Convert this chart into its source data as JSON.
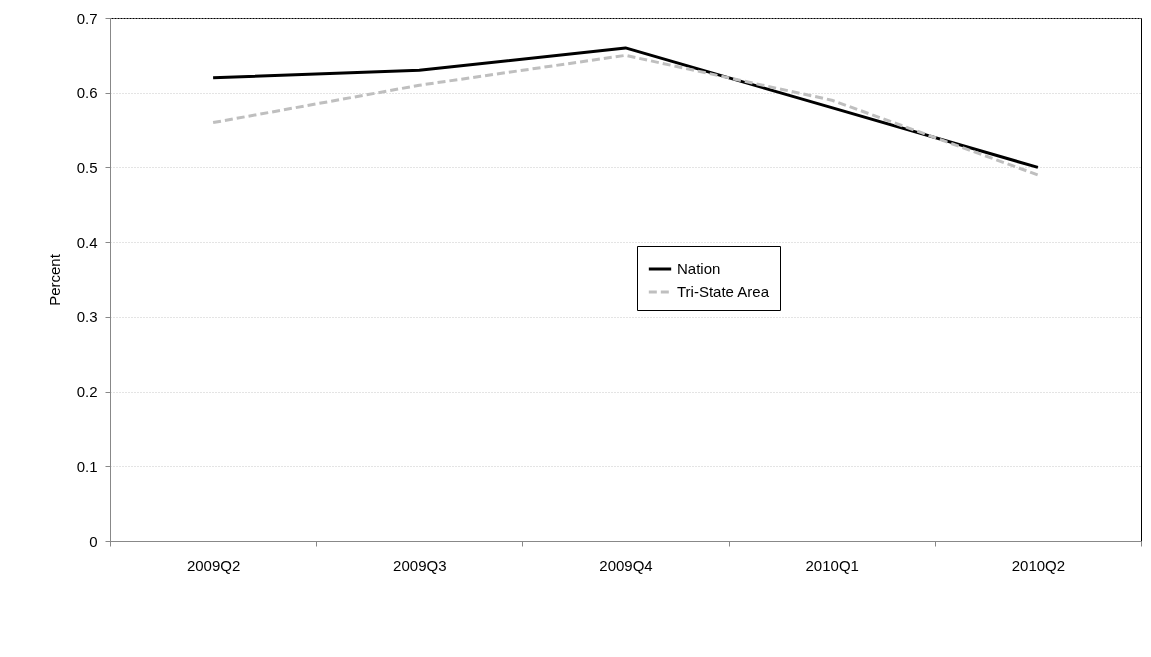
{
  "chart_data": {
    "type": "line",
    "ylabel": "Percent",
    "categories": [
      "2009Q2",
      "2009Q3",
      "2009Q4",
      "2010Q1",
      "2010Q2"
    ],
    "series": [
      {
        "name": "Nation",
        "color": "#000000",
        "line_style": "solid",
        "values": [
          0.62,
          0.63,
          0.66,
          0.58,
          0.5
        ]
      },
      {
        "name": "Tri-State Area",
        "color": "#bfbfbf",
        "line_style": "dashed",
        "values": [
          0.56,
          0.61,
          0.65,
          0.59,
          0.49
        ]
      }
    ],
    "ylim": [
      0,
      0.7
    ],
    "yticks": [
      0,
      0.1,
      0.2,
      0.3,
      0.4,
      0.5,
      0.6,
      0.7
    ],
    "grid": "y",
    "legend": "center",
    "marker": "none"
  }
}
